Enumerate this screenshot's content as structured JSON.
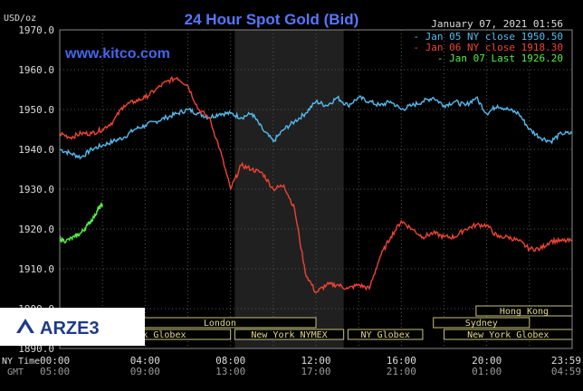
{
  "chart_data": {
    "type": "line",
    "title": "24 Hour Spot Gold (Bid)",
    "watermark": "www.kitco.com",
    "datetime": "January 07, 2021 01:56",
    "y_unit": "USD/oz",
    "ylim": [
      1890,
      1970
    ],
    "y_ticks": [
      "1970.0",
      "1960.0",
      "1950.0",
      "1940.0",
      "1930.0",
      "1920.0",
      "1910.0",
      "1900.0",
      "1890.0"
    ],
    "x_row_labels": [
      "NY Time",
      "GMT"
    ],
    "x_ticks_ny": [
      "00:00",
      "04:00",
      "08:00",
      "12:00",
      "16:00",
      "20:00",
      "23:59"
    ],
    "x_ticks_gmt": [
      "05:00",
      "09:00",
      "13:00",
      "17:00",
      "21:00",
      "01:00",
      "04:59"
    ],
    "grid": true,
    "legend_position": "top-right",
    "series": [
      {
        "name": "Jan 05 NY close 1950.50",
        "color": "#55bbee",
        "points": [
          [
            0,
            1940
          ],
          [
            0.5,
            1939
          ],
          [
            1,
            1938
          ],
          [
            1.5,
            1940
          ],
          [
            2,
            1941
          ],
          [
            2.5,
            1942
          ],
          [
            3,
            1943
          ],
          [
            3.5,
            1945
          ],
          [
            4,
            1946
          ],
          [
            4.5,
            1947
          ],
          [
            5,
            1948
          ],
          [
            5.5,
            1949
          ],
          [
            6,
            1950
          ],
          [
            6.5,
            1949
          ],
          [
            7,
            1948
          ],
          [
            7.5,
            1949
          ],
          [
            8,
            1949
          ],
          [
            8.5,
            1948
          ],
          [
            9,
            1949
          ],
          [
            9.5,
            1945
          ],
          [
            10,
            1942
          ],
          [
            10.5,
            1945
          ],
          [
            11,
            1947
          ],
          [
            11.5,
            1949
          ],
          [
            12,
            1952
          ],
          [
            12.5,
            1951
          ],
          [
            13,
            1953
          ],
          [
            13.5,
            1951
          ],
          [
            14,
            1953
          ],
          [
            14.5,
            1952
          ],
          [
            15,
            1951
          ],
          [
            15.5,
            1952
          ],
          [
            16,
            1950
          ],
          [
            16.5,
            1951
          ],
          [
            17,
            1952
          ],
          [
            17.5,
            1953
          ],
          [
            18,
            1951
          ],
          [
            18.5,
            1952
          ],
          [
            19,
            1951
          ],
          [
            19.5,
            1953
          ],
          [
            20,
            1949
          ],
          [
            20.5,
            1951
          ],
          [
            21,
            1950
          ],
          [
            21.5,
            1949
          ],
          [
            22,
            1945
          ],
          [
            22.5,
            1943
          ],
          [
            23,
            1942
          ],
          [
            23.5,
            1944
          ],
          [
            24,
            1944
          ]
        ]
      },
      {
        "name": "Jan 06 NY close 1918.30",
        "color": "#ee4433",
        "points": [
          [
            0,
            1944
          ],
          [
            0.5,
            1943
          ],
          [
            1,
            1944
          ],
          [
            1.5,
            1944
          ],
          [
            2,
            1945
          ],
          [
            2.5,
            1947
          ],
          [
            3,
            1951
          ],
          [
            3.5,
            1952
          ],
          [
            4,
            1953
          ],
          [
            4.5,
            1955
          ],
          [
            5,
            1957
          ],
          [
            5.5,
            1958
          ],
          [
            6,
            1956
          ],
          [
            6.5,
            1950
          ],
          [
            7,
            1948
          ],
          [
            7.5,
            1940
          ],
          [
            8,
            1930
          ],
          [
            8.5,
            1936
          ],
          [
            9,
            1935
          ],
          [
            9.5,
            1934
          ],
          [
            10,
            1930
          ],
          [
            10.5,
            1931
          ],
          [
            11,
            1925
          ],
          [
            11.5,
            1909
          ],
          [
            12,
            1904
          ],
          [
            12.5,
            1906
          ],
          [
            13,
            1906
          ],
          [
            13.5,
            1905
          ],
          [
            14,
            1906
          ],
          [
            14.5,
            1905
          ],
          [
            15,
            1913
          ],
          [
            15.5,
            1918
          ],
          [
            16,
            1922
          ],
          [
            16.5,
            1920
          ],
          [
            17,
            1918
          ],
          [
            17.5,
            1919
          ],
          [
            18,
            1918
          ],
          [
            18.5,
            1918
          ],
          [
            19,
            1920
          ],
          [
            19.5,
            1921
          ],
          [
            20,
            1921
          ],
          [
            20.5,
            1918
          ],
          [
            21,
            1918
          ],
          [
            21.5,
            1917
          ],
          [
            22,
            1915
          ],
          [
            22.5,
            1915
          ],
          [
            23,
            1917
          ],
          [
            23.5,
            1917
          ],
          [
            24,
            1917
          ]
        ]
      },
      {
        "name": "Jan 07 Last 1926.20",
        "color": "#55ee44",
        "points": [
          [
            0,
            1917.5
          ],
          [
            0.3,
            1917
          ],
          [
            0.7,
            1918
          ],
          [
            1,
            1919
          ],
          [
            1.3,
            1921
          ],
          [
            1.6,
            1923
          ],
          [
            1.8,
            1925
          ],
          [
            2,
            1926.2
          ]
        ]
      }
    ],
    "sessions": [
      {
        "label": "London",
        "row": 2,
        "start": 3,
        "end": 12
      },
      {
        "label": "Hong Kong",
        "row": 1,
        "start": 19.5,
        "end": 24
      },
      {
        "label": "Sydney",
        "row": 2,
        "start": 17.5,
        "end": 22
      },
      {
        "label": "New York Globex",
        "row": 3,
        "start": 0,
        "end": 8
      },
      {
        "label": "New York NYMEX",
        "row": 3,
        "start": 8.2,
        "end": 13.3
      },
      {
        "label": "NY Globex",
        "row": 3,
        "start": 13.5,
        "end": 17
      },
      {
        "label": "New York Globex",
        "row": 3,
        "start": 18,
        "end": 24
      }
    ],
    "shaded_range": [
      8.2,
      13.3
    ]
  },
  "logo": {
    "text": "ARZE3"
  }
}
